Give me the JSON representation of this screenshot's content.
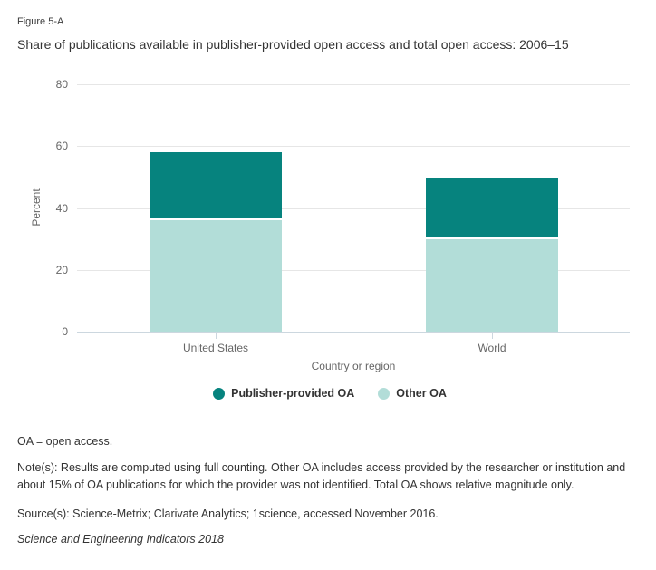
{
  "figure_label": "Figure 5-A",
  "chart_data": {
    "type": "bar",
    "stacked": true,
    "title": "Share of publications available in publisher-provided open access and total open access: 2006–15",
    "categories": [
      "United States",
      "World"
    ],
    "series": [
      {
        "name": "Publisher-provided OA",
        "color": "#06837E",
        "values": [
          22,
          20
        ]
      },
      {
        "name": "Other OA",
        "color": "#B2DDD8",
        "values": [
          36,
          30
        ]
      }
    ],
    "totals": [
      58,
      50
    ],
    "stack_bottom_to_top": [
      "Other OA",
      "Publisher-provided OA"
    ],
    "xlabel": "Country or region",
    "ylabel": "Percent",
    "ylim": [
      0,
      80
    ],
    "yticks": [
      0,
      20,
      40,
      60,
      80
    ],
    "grid": true,
    "legend_position": "bottom",
    "colors": {
      "gridline": "#e6e6e6",
      "axis_line": "#ccd7df",
      "tick_label": "#666666",
      "segment_separator": "#ffffff"
    }
  },
  "footnotes": {
    "oa_note": "OA = open access.",
    "notes": "Note(s): Results are computed using full counting. Other OA includes access provided by the researcher or institution and about 15% of OA publications for which the provider was not identified. Total OA shows relative magnitude only.",
    "source": "Source(s): Science-Metrix; Clarivate Analytics; 1science, accessed November 2016.",
    "attribution": "Science and Engineering Indicators 2018"
  }
}
